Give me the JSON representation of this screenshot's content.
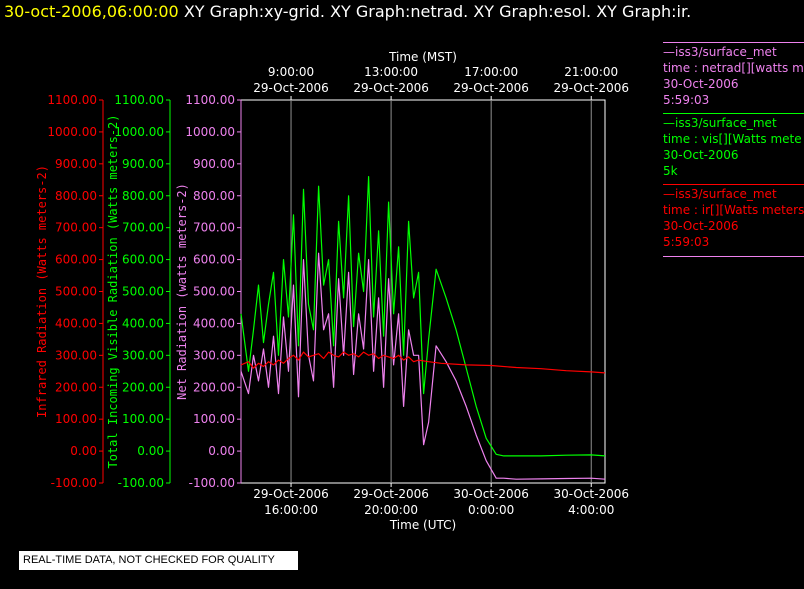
{
  "header": {
    "timestamp": "30-oct-2006,06:00:00",
    "titles": [
      "XY Graph:xy-grid.",
      "XY Graph:netrad.",
      "XY Graph:esol.",
      "XY Graph:ir."
    ]
  },
  "legend": [
    {
      "color": "#ee82ee",
      "lines": [
        "—iss3/surface_met",
        "time : netrad[][watts me",
        "30-Oct-2006",
        "5:59:03"
      ]
    },
    {
      "color": "#00ff00",
      "lines": [
        "—iss3/surface_met",
        "time : vis[][Watts mete",
        "30-Oct-2006",
        "5k"
      ]
    },
    {
      "color": "#ff0000",
      "lines": [
        "—iss3/surface_met",
        "time : ir[][Watts meters",
        "30-Oct-2006",
        "5:59:03"
      ]
    }
  ],
  "quality_note": "REAL-TIME DATA, NOT CHECKED FOR QUALITY",
  "chart_data": {
    "type": "line",
    "top_axis": {
      "label": "Time (MST)",
      "ticks": [
        {
          "x": 2.0,
          "line1": "9:00:00",
          "line2": "29-Oct-2006"
        },
        {
          "x": 6.0,
          "line1": "13:00:00",
          "line2": "29-Oct-2006"
        },
        {
          "x": 10.0,
          "line1": "17:00:00",
          "line2": "29-Oct-2006"
        },
        {
          "x": 14.0,
          "line1": "21:00:00",
          "line2": "29-Oct-2006"
        }
      ]
    },
    "bottom_axis": {
      "label": "Time (UTC)",
      "ticks": [
        {
          "x": 2.0,
          "line1": "29-Oct-2006",
          "line2": "16:00:00"
        },
        {
          "x": 6.0,
          "line1": "29-Oct-2006",
          "line2": "20:00:00"
        },
        {
          "x": 10.0,
          "line1": "30-Oct-2006",
          "line2": "0:00:00"
        },
        {
          "x": 14.0,
          "line1": "30-Oct-2006",
          "line2": "4:00:00"
        }
      ]
    },
    "xlim": [
      0,
      14.55
    ],
    "ylim": [
      -100,
      1100
    ],
    "yticks": [
      "-100.00",
      "0.00",
      "100.00",
      "200.00",
      "300.00",
      "400.00",
      "500.00",
      "600.00",
      "700.00",
      "800.00",
      "900.00",
      "1000.00",
      "1100.00"
    ],
    "y_axes": [
      {
        "label": "Infrared Radiation (Watts meters-2)",
        "color": "#ff0000"
      },
      {
        "label": "Total Incoming Visible Radiation (Watts meters-2)",
        "color": "#00ff00"
      },
      {
        "label": "Net Radiation (watts meters-2)",
        "color": "#ee82ee"
      }
    ],
    "grid": true,
    "series": [
      {
        "key": "vis",
        "color": "#00ff00",
        "x": [
          0.0,
          0.3,
          0.5,
          0.7,
          0.9,
          1.1,
          1.3,
          1.5,
          1.7,
          1.9,
          2.1,
          2.3,
          2.5,
          2.7,
          2.9,
          3.1,
          3.3,
          3.5,
          3.7,
          3.9,
          4.1,
          4.3,
          4.5,
          4.7,
          4.9,
          5.1,
          5.3,
          5.5,
          5.7,
          5.9,
          6.1,
          6.3,
          6.5,
          6.7,
          6.9,
          7.1,
          7.3,
          7.5,
          7.8,
          8.2,
          8.6,
          9.0,
          9.4,
          9.8,
          10.2,
          10.5,
          11.0,
          12.0,
          13.0,
          14.0,
          14.55
        ],
        "y": [
          430,
          250,
          380,
          520,
          340,
          460,
          560,
          300,
          600,
          420,
          740,
          330,
          820,
          460,
          380,
          830,
          520,
          600,
          330,
          720,
          480,
          800,
          390,
          620,
          500,
          860,
          420,
          690,
          360,
          780,
          430,
          640,
          300,
          720,
          480,
          560,
          180,
          350,
          570,
          480,
          380,
          260,
          140,
          40,
          -10,
          -15,
          -15,
          -15,
          -13,
          -12,
          -15
        ]
      },
      {
        "key": "netrad",
        "color": "#ee82ee",
        "x": [
          0.0,
          0.3,
          0.5,
          0.7,
          0.9,
          1.1,
          1.3,
          1.5,
          1.7,
          1.9,
          2.1,
          2.3,
          2.5,
          2.7,
          2.9,
          3.1,
          3.3,
          3.5,
          3.7,
          3.9,
          4.1,
          4.3,
          4.5,
          4.7,
          4.9,
          5.1,
          5.3,
          5.5,
          5.7,
          5.9,
          6.1,
          6.3,
          6.5,
          6.7,
          6.9,
          7.1,
          7.3,
          7.5,
          7.8,
          8.2,
          8.6,
          9.0,
          9.4,
          9.8,
          10.2,
          10.5,
          11.0,
          12.0,
          13.0,
          14.0,
          14.55
        ],
        "y": [
          250,
          180,
          300,
          220,
          320,
          200,
          360,
          180,
          420,
          250,
          520,
          170,
          600,
          300,
          220,
          620,
          380,
          430,
          200,
          540,
          300,
          560,
          240,
          430,
          320,
          600,
          250,
          480,
          200,
          540,
          270,
          430,
          140,
          380,
          300,
          300,
          20,
          90,
          330,
          280,
          220,
          140,
          50,
          -30,
          -85,
          -85,
          -88,
          -87,
          -86,
          -85,
          -88
        ]
      },
      {
        "key": "ir",
        "color": "#ff0000",
        "x": [
          0.0,
          0.3,
          0.5,
          0.7,
          0.9,
          1.1,
          1.3,
          1.5,
          1.7,
          1.9,
          2.1,
          2.3,
          2.5,
          2.7,
          2.9,
          3.1,
          3.3,
          3.5,
          3.7,
          3.9,
          4.1,
          4.3,
          4.5,
          4.7,
          4.9,
          5.1,
          5.3,
          5.5,
          5.7,
          5.9,
          6.1,
          6.3,
          6.5,
          6.7,
          6.9,
          7.1,
          7.5,
          8.0,
          9.0,
          10.0,
          11.0,
          12.0,
          13.0,
          14.0,
          14.55
        ],
        "y": [
          270,
          280,
          260,
          275,
          265,
          280,
          270,
          285,
          275,
          290,
          300,
          285,
          310,
          295,
          300,
          305,
          290,
          310,
          300,
          295,
          310,
          300,
          305,
          295,
          310,
          300,
          305,
          290,
          300,
          295,
          290,
          300,
          285,
          295,
          280,
          285,
          280,
          275,
          270,
          268,
          262,
          258,
          252,
          248,
          245
        ]
      }
    ]
  }
}
